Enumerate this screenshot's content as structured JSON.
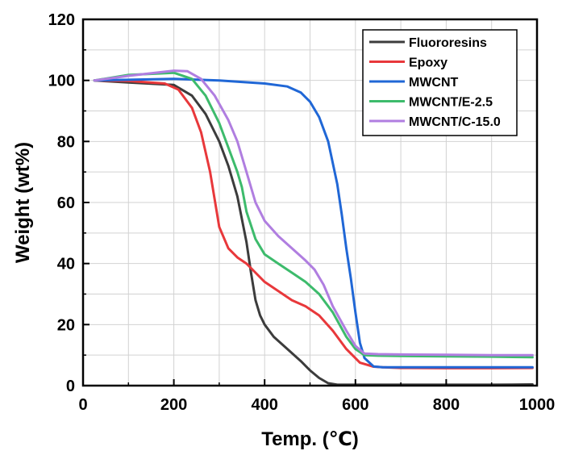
{
  "chart_data": {
    "type": "line",
    "xlabel": "Temp. (℃)",
    "ylabel": "Weight (wt%)",
    "xlim": [
      0,
      1000
    ],
    "ylim": [
      0,
      120
    ],
    "xticks": [
      0,
      200,
      400,
      600,
      800,
      1000
    ],
    "yticks": [
      0,
      20,
      40,
      60,
      80,
      100,
      120
    ],
    "xtick_labels": [
      "0",
      "200",
      "400",
      "600",
      "800",
      "1000"
    ],
    "ytick_labels": [
      "0",
      "20",
      "40",
      "60",
      "80",
      "100",
      "120"
    ],
    "grid": true,
    "legend_position": "top-right",
    "series": [
      {
        "name": "Fluororesins",
        "color": "#3c3c3c",
        "x": [
          25,
          100,
          200,
          240,
          270,
          300,
          320,
          340,
          360,
          370,
          380,
          390,
          400,
          420,
          450,
          480,
          500,
          520,
          540,
          560,
          580,
          600,
          700,
          800,
          900,
          990
        ],
        "y": [
          100,
          99.3,
          98.5,
          95,
          89,
          80,
          72,
          62,
          47,
          37,
          28,
          23,
          20,
          16,
          12,
          8,
          5,
          2.5,
          0.8,
          0.3,
          0.3,
          0.3,
          0.3,
          0.3,
          0.3,
          0.4
        ]
      },
      {
        "name": "Epoxy",
        "color": "#e8383b",
        "x": [
          25,
          100,
          180,
          210,
          240,
          260,
          280,
          300,
          320,
          340,
          360,
          380,
          400,
          430,
          460,
          490,
          520,
          550,
          580,
          610,
          640,
          660,
          700,
          800,
          900,
          990
        ],
        "y": [
          100,
          99.8,
          99,
          97,
          91,
          83,
          70,
          52,
          45,
          42,
          40,
          37,
          34,
          31,
          28,
          26,
          23,
          18,
          12,
          7.5,
          6.2,
          6,
          5.8,
          5.7,
          5.7,
          5.8
        ]
      },
      {
        "name": "MWCNT",
        "color": "#2067d6",
        "x": [
          25,
          100,
          200,
          300,
          400,
          450,
          480,
          500,
          520,
          540,
          560,
          570,
          580,
          590,
          600,
          610,
          620,
          640,
          660,
          700,
          800,
          900,
          990
        ],
        "y": [
          100,
          100.2,
          100.5,
          100,
          99,
          98,
          96,
          93,
          88,
          80,
          66,
          56,
          45,
          35,
          24,
          14,
          9,
          6.3,
          6,
          6,
          6,
          6,
          6
        ]
      },
      {
        "name": "MWCNT/E-2.5",
        "color": "#3dbb6c",
        "x": [
          25,
          100,
          200,
          240,
          270,
          300,
          320,
          340,
          350,
          360,
          380,
          400,
          430,
          460,
          490,
          520,
          550,
          580,
          600,
          620,
          650,
          700,
          800,
          900,
          990
        ],
        "y": [
          100,
          101.8,
          102.5,
          100.5,
          95,
          86,
          78,
          70,
          65,
          57,
          48,
          43,
          40,
          37,
          34,
          30,
          24,
          16,
          12,
          10,
          9.8,
          9.7,
          9.6,
          9.5,
          9.3
        ]
      },
      {
        "name": "MWCNT/C-15.0",
        "color": "#b07ee0",
        "x": [
          25,
          100,
          200,
          230,
          260,
          290,
          320,
          340,
          360,
          380,
          400,
          430,
          460,
          490,
          510,
          530,
          550,
          580,
          600,
          620,
          650,
          700,
          800,
          900,
          990
        ],
        "y": [
          100,
          101.5,
          103.2,
          103,
          100.5,
          95,
          87,
          80,
          70,
          60,
          54,
          49,
          45,
          41,
          38,
          33,
          26,
          18,
          13,
          10.5,
          10.3,
          10.2,
          10.1,
          10,
          10
        ]
      }
    ]
  }
}
